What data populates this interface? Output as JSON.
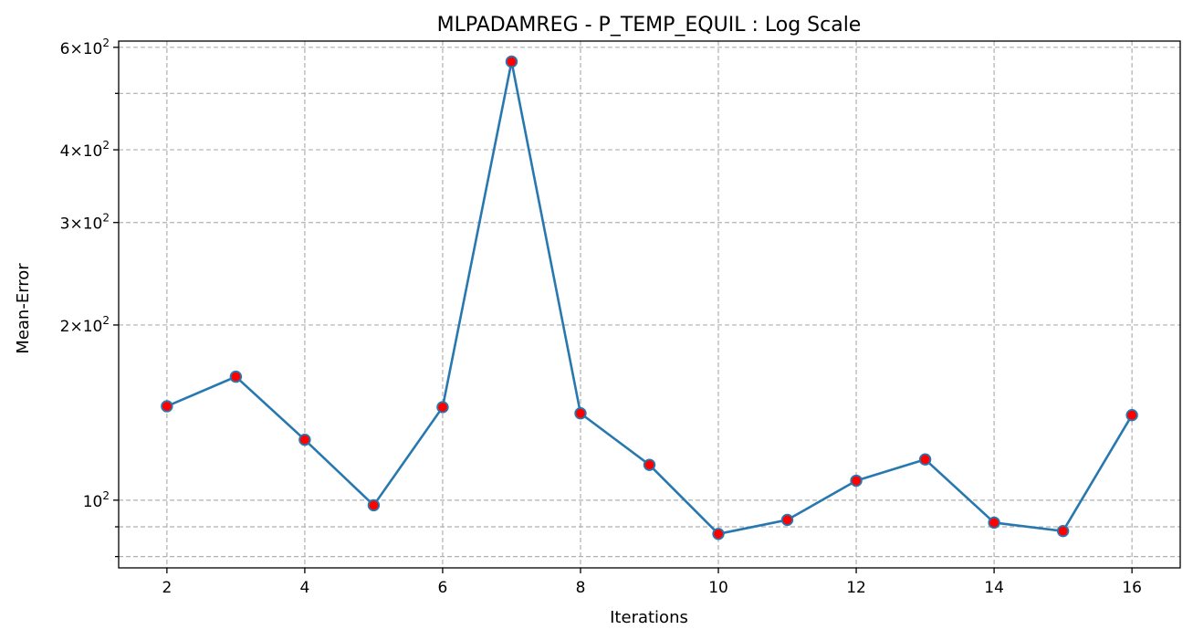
{
  "chart_data": {
    "type": "line",
    "title": "MLPADAMREG - P_TEMP_EQUIL : Log Scale",
    "xlabel": "Iterations",
    "ylabel": "Mean-Error",
    "yscale": "log",
    "xlim": [
      1.3,
      16.7
    ],
    "ylim": [
      76.5,
      615
    ],
    "x": [
      2,
      3,
      4,
      5,
      6,
      7,
      8,
      9,
      10,
      11,
      12,
      13,
      14,
      15,
      16
    ],
    "series": [
      {
        "values": [
          145,
          163,
          127,
          98,
          144.5,
          567,
          141,
          115,
          87.5,
          92.5,
          108,
          117.5,
          91.5,
          88.5,
          140
        ],
        "line_color": "#2878b0",
        "marker_fill": "#ff0000",
        "marker_edge": "#2878b0"
      }
    ],
    "x_ticks": [
      2,
      4,
      6,
      8,
      10,
      12,
      14,
      16
    ],
    "y_major_ticks": [
      {
        "value": 100,
        "coef": "",
        "exp": "2"
      },
      {
        "value": 200,
        "coef": "2",
        "exp": "2"
      },
      {
        "value": 300,
        "coef": "3",
        "exp": "2"
      },
      {
        "value": 400,
        "coef": "4",
        "exp": "2"
      },
      {
        "value": 600,
        "coef": "6",
        "exp": "2"
      }
    ],
    "y_minor_ticks": [
      80,
      90,
      500
    ],
    "grid": true,
    "grid_color": "#b0b0b0"
  }
}
